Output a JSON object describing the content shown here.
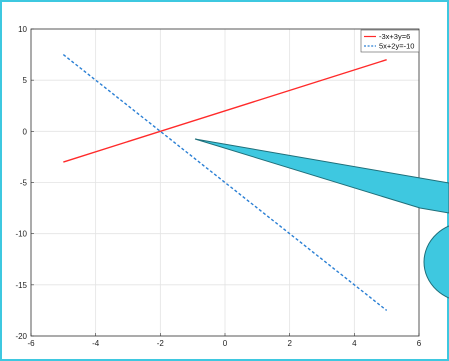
{
  "chart_data": {
    "type": "line",
    "title": "",
    "xlabel": "",
    "ylabel": "",
    "xlim": [
      -6,
      6
    ],
    "ylim": [
      -20,
      10
    ],
    "xticks": [
      -6,
      -4,
      -2,
      0,
      2,
      4,
      6
    ],
    "yticks": [
      -20,
      -15,
      -10,
      -5,
      0,
      5,
      10
    ],
    "grid": true,
    "legend_position": "top-right",
    "series": [
      {
        "name": "-3x+3y=6",
        "color": "#ff2a2a",
        "style": "solid",
        "x": [
          -5,
          5
        ],
        "y": [
          -3,
          7
        ]
      },
      {
        "name": "5x+2y=-10",
        "color": "#2a7fd4",
        "style": "dashed",
        "x": [
          -5,
          5
        ],
        "y": [
          7.5,
          -17.5
        ]
      }
    ]
  },
  "annotation": {
    "shape": "callout",
    "color": "#3ec8e0",
    "outline": "#1f6f7a"
  }
}
